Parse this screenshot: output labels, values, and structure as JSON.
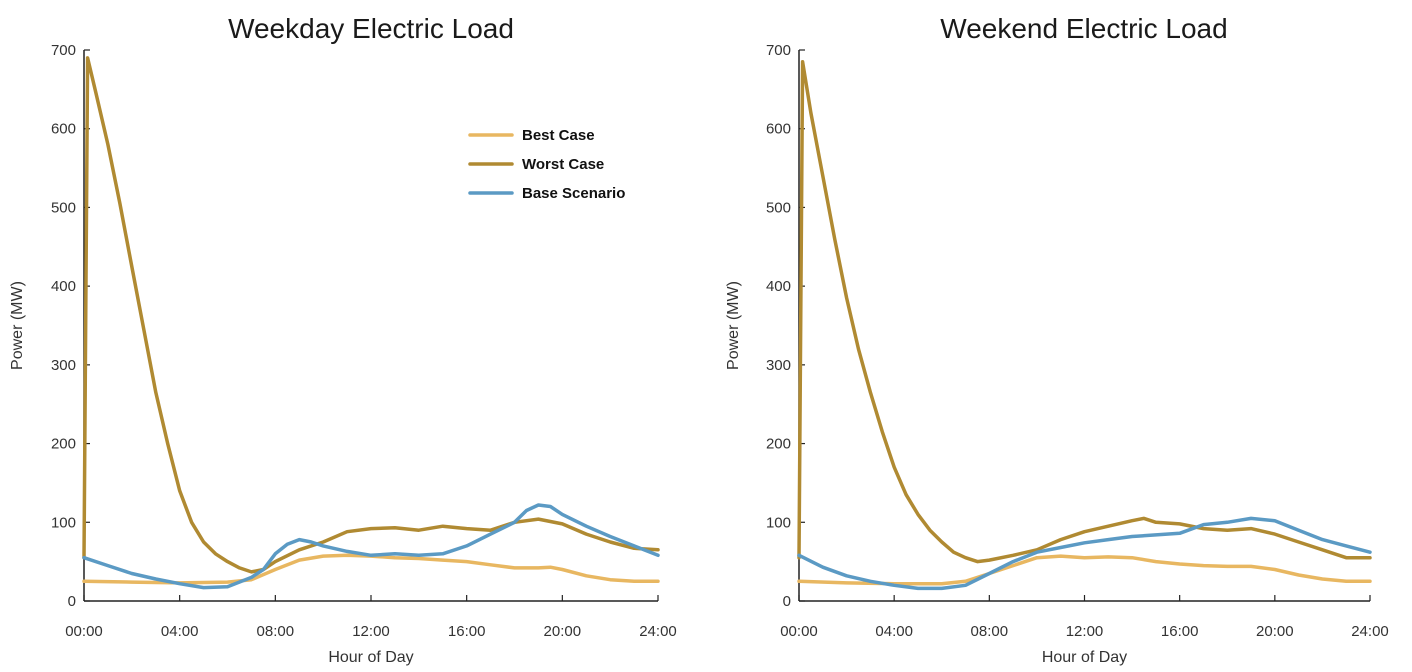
{
  "chart_data": [
    {
      "type": "line",
      "title": "Weekday Electric Load",
      "xlabel": "Hour of Day",
      "ylabel": "Power (MW)",
      "xlim": [
        0,
        24
      ],
      "ylim": [
        0,
        700
      ],
      "x_tick_labels": [
        "00:00",
        "04:00",
        "08:00",
        "12:00",
        "16:00",
        "20:00",
        "24:00"
      ],
      "y_tick_labels": [
        "0",
        "100",
        "200",
        "300",
        "400",
        "500",
        "600",
        "700"
      ],
      "grid": false,
      "legend": {
        "placement": "top-right"
      },
      "series": [
        {
          "name": "Best Case",
          "color": "#E8B761",
          "x": [
            0,
            2,
            4,
            6,
            7,
            8,
            9,
            10,
            11,
            12,
            13,
            14,
            15,
            16,
            17,
            18,
            19,
            19.5,
            20,
            21,
            22,
            23,
            24
          ],
          "y": [
            25,
            24,
            23,
            24,
            27,
            40,
            52,
            57,
            58,
            57,
            55,
            54,
            52,
            50,
            46,
            42,
            42,
            43,
            40,
            32,
            27,
            25,
            25
          ]
        },
        {
          "name": "Worst Case",
          "color": "#B08A32",
          "x": [
            0,
            0.15,
            0.5,
            1,
            1.5,
            2,
            2.5,
            3,
            3.5,
            4,
            4.5,
            5,
            5.5,
            6,
            6.5,
            7,
            7.5,
            8,
            9,
            10,
            11,
            12,
            13,
            14,
            15,
            16,
            17,
            18,
            19,
            20,
            21,
            22,
            23,
            24
          ],
          "y": [
            55,
            690,
            645,
            580,
            505,
            425,
            345,
            265,
            200,
            140,
            100,
            75,
            60,
            50,
            42,
            37,
            40,
            50,
            65,
            75,
            88,
            92,
            93,
            90,
            95,
            92,
            90,
            100,
            104,
            98,
            85,
            75,
            67,
            65
          ]
        },
        {
          "name": "Base Scenario",
          "color": "#5B9AC4",
          "x": [
            0,
            1,
            2,
            3,
            4,
            5,
            6,
            7,
            7.5,
            8,
            8.5,
            9,
            9.5,
            10,
            11,
            12,
            13,
            14,
            15,
            16,
            17,
            18,
            18.5,
            19,
            19.5,
            20,
            21,
            22,
            23,
            24
          ],
          "y": [
            55,
            45,
            35,
            28,
            22,
            17,
            18,
            30,
            40,
            60,
            72,
            78,
            75,
            70,
            63,
            58,
            60,
            58,
            60,
            70,
            85,
            100,
            115,
            122,
            120,
            110,
            95,
            82,
            70,
            58
          ]
        }
      ]
    },
    {
      "type": "line",
      "title": "Weekend Electric Load",
      "xlabel": "Hour of Day",
      "ylabel": "Power (MW)",
      "xlim": [
        0,
        24
      ],
      "ylim": [
        0,
        700
      ],
      "x_tick_labels": [
        "00:00",
        "04:00",
        "08:00",
        "12:00",
        "16:00",
        "20:00",
        "24:00"
      ],
      "y_tick_labels": [
        "0",
        "100",
        "200",
        "300",
        "400",
        "500",
        "600",
        "700"
      ],
      "grid": false,
      "series": [
        {
          "name": "Best Case",
          "color": "#E8B761",
          "x": [
            0,
            2,
            4,
            6,
            7,
            8,
            9,
            10,
            11,
            12,
            13,
            14,
            15,
            16,
            17,
            18,
            19,
            20,
            21,
            22,
            23,
            24
          ],
          "y": [
            25,
            23,
            22,
            22,
            25,
            35,
            45,
            55,
            57,
            55,
            56,
            55,
            50,
            47,
            45,
            44,
            44,
            40,
            33,
            28,
            25,
            25
          ]
        },
        {
          "name": "Worst Case",
          "color": "#B08A32",
          "x": [
            0,
            0.15,
            0.5,
            1,
            1.5,
            2,
            2.5,
            3,
            3.5,
            4,
            4.5,
            5,
            5.5,
            6,
            6.5,
            7,
            7.5,
            8,
            9,
            10,
            11,
            12,
            13,
            14,
            14.5,
            15,
            16,
            17,
            18,
            19,
            20,
            21,
            22,
            23,
            24
          ],
          "y": [
            55,
            685,
            620,
            540,
            460,
            385,
            320,
            265,
            215,
            170,
            135,
            110,
            90,
            75,
            62,
            55,
            50,
            52,
            58,
            65,
            78,
            88,
            95,
            102,
            105,
            100,
            98,
            92,
            90,
            92,
            85,
            75,
            65,
            55,
            55
          ]
        },
        {
          "name": "Base Scenario",
          "color": "#5B9AC4",
          "x": [
            0,
            1,
            2,
            3,
            4,
            5,
            6,
            7,
            8,
            9,
            10,
            11,
            12,
            13,
            14,
            15,
            16,
            17,
            18,
            19,
            20,
            21,
            22,
            23,
            24
          ],
          "y": [
            58,
            43,
            32,
            25,
            20,
            16,
            16,
            20,
            35,
            50,
            62,
            68,
            74,
            78,
            82,
            84,
            86,
            97,
            100,
            105,
            102,
            90,
            78,
            70,
            62
          ]
        }
      ]
    }
  ]
}
